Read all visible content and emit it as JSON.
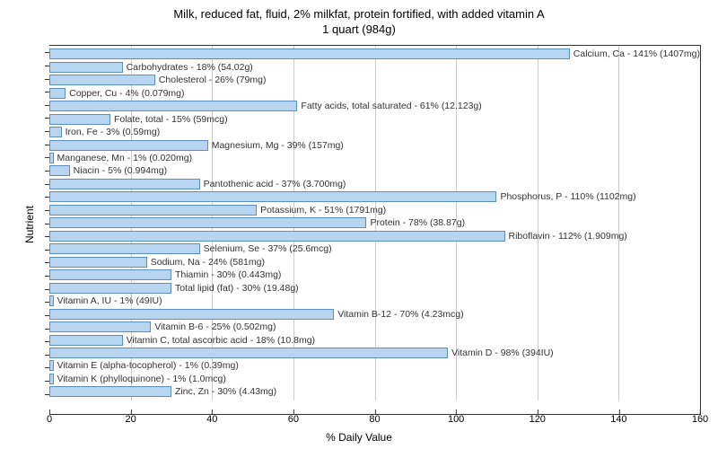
{
  "chart": {
    "type": "bar",
    "orientation": "horizontal",
    "title_line1": "Milk, reduced fat, fluid, 2% milkfat, protein fortified, with added vitamin A",
    "title_line2": "1 quart (984g)",
    "title_fontsize": 13,
    "x_axis_label": "% Daily Value",
    "y_axis_label": "Nutrient",
    "label_fontsize": 12,
    "bar_label_fontsize": 10.5,
    "x_min": 0,
    "x_max": 160,
    "x_tick_step": 20,
    "x_ticks": [
      0,
      20,
      40,
      60,
      80,
      100,
      120,
      140,
      160
    ],
    "bar_fill_color": "#b7d4f0",
    "bar_border_color": "#5a8fc0",
    "background_color": "#ffffff",
    "grid_color": "#cccccc",
    "axis_color": "#333333",
    "text_color": "#333333",
    "bars": [
      {
        "label": "Calcium, Ca - 141% (1407mg)",
        "value": 141
      },
      {
        "label": "Carbohydrates - 18% (54.02g)",
        "value": 18
      },
      {
        "label": "Cholesterol - 26% (79mg)",
        "value": 26
      },
      {
        "label": "Copper, Cu - 4% (0.079mg)",
        "value": 4
      },
      {
        "label": "Fatty acids, total saturated - 61% (12.123g)",
        "value": 61
      },
      {
        "label": "Folate, total - 15% (59mcg)",
        "value": 15
      },
      {
        "label": "Iron, Fe - 3% (0.59mg)",
        "value": 3
      },
      {
        "label": "Magnesium, Mg - 39% (157mg)",
        "value": 39
      },
      {
        "label": "Manganese, Mn - 1% (0.020mg)",
        "value": 1
      },
      {
        "label": "Niacin - 5% (0.994mg)",
        "value": 5
      },
      {
        "label": "Pantothenic acid - 37% (3.700mg)",
        "value": 37
      },
      {
        "label": "Phosphorus, P - 110% (1102mg)",
        "value": 110
      },
      {
        "label": "Potassium, K - 51% (1791mg)",
        "value": 51
      },
      {
        "label": "Protein - 78% (38.87g)",
        "value": 78
      },
      {
        "label": "Riboflavin - 112% (1.909mg)",
        "value": 112
      },
      {
        "label": "Selenium, Se - 37% (25.6mcg)",
        "value": 37
      },
      {
        "label": "Sodium, Na - 24% (581mg)",
        "value": 24
      },
      {
        "label": "Thiamin - 30% (0.443mg)",
        "value": 30
      },
      {
        "label": "Total lipid (fat) - 30% (19.48g)",
        "value": 30
      },
      {
        "label": "Vitamin A, IU - 1% (49IU)",
        "value": 1
      },
      {
        "label": "Vitamin B-12 - 70% (4.23mcg)",
        "value": 70
      },
      {
        "label": "Vitamin B-6 - 25% (0.502mg)",
        "value": 25
      },
      {
        "label": "Vitamin C, total ascorbic acid - 18% (10.8mg)",
        "value": 18
      },
      {
        "label": "Vitamin D - 98% (394IU)",
        "value": 98
      },
      {
        "label": "Vitamin E (alpha-tocopherol) - 1% (0.39mg)",
        "value": 1
      },
      {
        "label": "Vitamin K (phylloquinone) - 1% (1.0mcg)",
        "value": 1
      },
      {
        "label": "Zinc, Zn - 30% (4.43mg)",
        "value": 30
      }
    ]
  }
}
